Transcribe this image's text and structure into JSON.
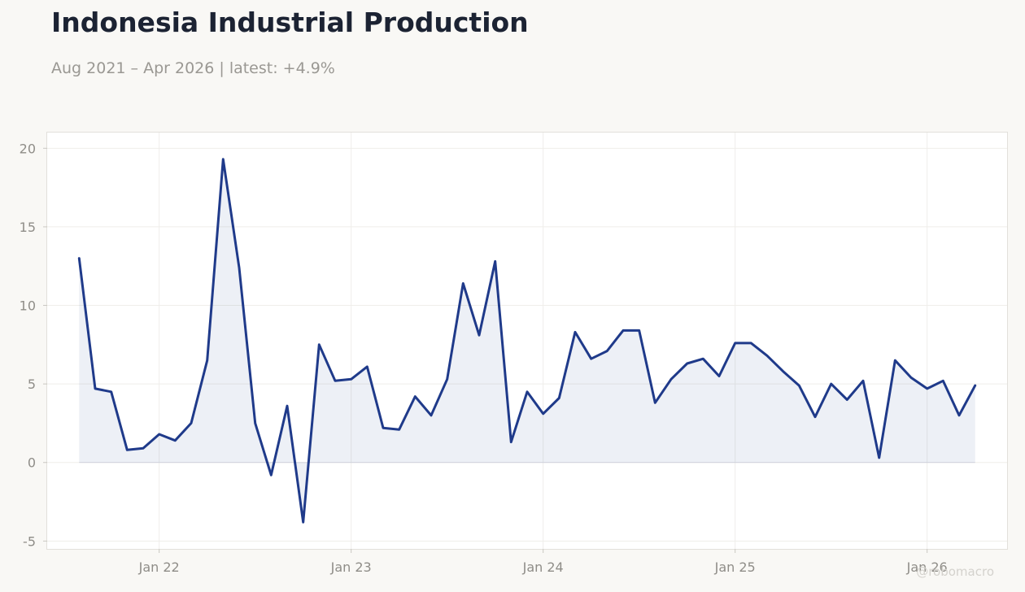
{
  "title": "Indonesia Industrial Production",
  "subtitle": "Aug 2021 – Apr 2026 | latest: +4.9%",
  "watermark": "@robomacro",
  "colors": {
    "line": "#1f3a8a",
    "fill": "#1f3a8a",
    "background": "#f9f8f5",
    "plot_background": "#ffffff",
    "grid": "#efeeea"
  },
  "chart_data": {
    "type": "area",
    "title": "Indonesia Industrial Production",
    "subtitle": "Aug 2021 – Apr 2026 | latest: +4.9%",
    "xlabel": "",
    "ylabel": "",
    "x_start": "2021-08",
    "x_end": "2026-04",
    "xlim": [
      "2021-06",
      "2026-06"
    ],
    "ylim": [
      -5.5,
      21
    ],
    "yticks": [
      -5,
      0,
      5,
      10,
      15,
      20
    ],
    "ytick_labels": [
      "-5",
      "0",
      "5",
      "10",
      "15",
      "20"
    ],
    "xticks": [
      "2022-01",
      "2023-01",
      "2024-01",
      "2025-01",
      "2026-01"
    ],
    "xtick_labels": [
      "Jan 22",
      "Jan 23",
      "Jan 24",
      "Jan 25",
      "Jan 26"
    ],
    "grid": true,
    "legend": "none",
    "series": [
      {
        "x": [
          "2021-08",
          "2021-09",
          "2021-10",
          "2021-11",
          "2021-12",
          "2022-01",
          "2022-02",
          "2022-03",
          "2022-04",
          "2022-05",
          "2022-06",
          "2022-07",
          "2022-08",
          "2022-09",
          "2022-10",
          "2022-11",
          "2022-12",
          "2023-01",
          "2023-02",
          "2023-03",
          "2023-04",
          "2023-05",
          "2023-06",
          "2023-07",
          "2023-08",
          "2023-09",
          "2023-10",
          "2023-11",
          "2023-12",
          "2024-01",
          "2024-02",
          "2024-03",
          "2024-04",
          "2024-05",
          "2024-06",
          "2024-07",
          "2024-08",
          "2024-09",
          "2024-10",
          "2024-11",
          "2024-12",
          "2025-01",
          "2025-02",
          "2025-03",
          "2025-04",
          "2025-05",
          "2025-06",
          "2025-07",
          "2025-08",
          "2025-09",
          "2025-10",
          "2025-11",
          "2025-12",
          "2026-01",
          "2026-02",
          "2026-03",
          "2026-04"
        ],
        "values": [
          13.0,
          4.7,
          4.5,
          0.8,
          0.9,
          1.8,
          1.4,
          2.5,
          6.5,
          19.3,
          12.4,
          2.5,
          -0.8,
          3.6,
          -3.8,
          7.5,
          5.2,
          5.3,
          6.1,
          2.2,
          2.1,
          4.2,
          3.0,
          5.3,
          11.4,
          8.1,
          12.8,
          1.3,
          4.5,
          3.1,
          4.1,
          8.3,
          6.6,
          7.1,
          8.4,
          8.4,
          3.8,
          5.3,
          6.3,
          6.6,
          5.5,
          7.6,
          7.6,
          6.8,
          5.8,
          4.9,
          2.9,
          5.0,
          4.0,
          5.2,
          0.3,
          6.5,
          5.4,
          4.7,
          5.2,
          3.0,
          4.9
        ]
      }
    ]
  }
}
